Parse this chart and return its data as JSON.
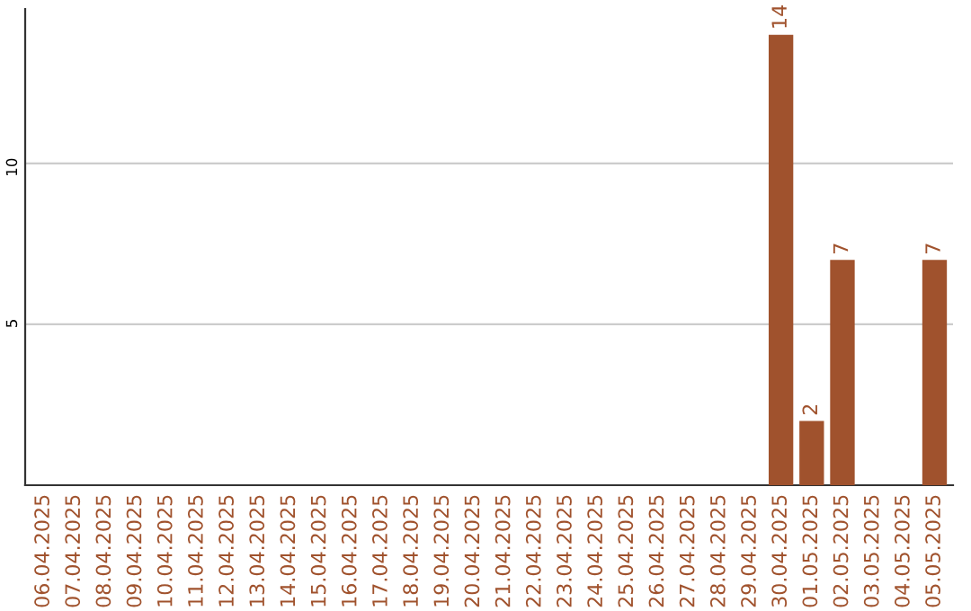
{
  "chart_data": {
    "type": "bar",
    "categories": [
      "06.04.2025",
      "07.04.2025",
      "08.04.2025",
      "09.04.2025",
      "10.04.2025",
      "11.04.2025",
      "12.04.2025",
      "13.04.2025",
      "14.04.2025",
      "15.04.2025",
      "16.04.2025",
      "17.04.2025",
      "18.04.2025",
      "19.04.2025",
      "20.04.2025",
      "21.04.2025",
      "22.04.2025",
      "23.04.2025",
      "24.04.2025",
      "25.04.2025",
      "26.04.2025",
      "27.04.2025",
      "28.04.2025",
      "29.04.2025",
      "30.04.2025",
      "01.05.2025",
      "02.05.2025",
      "03.05.2025",
      "04.05.2025",
      "05.05.2025"
    ],
    "values": [
      0,
      0,
      0,
      0,
      0,
      0,
      0,
      0,
      0,
      0,
      0,
      0,
      0,
      0,
      0,
      0,
      0,
      0,
      0,
      0,
      0,
      0,
      0,
      0,
      14,
      2,
      7,
      0,
      0,
      7
    ],
    "value_labels": [
      null,
      null,
      null,
      null,
      null,
      null,
      null,
      null,
      null,
      null,
      null,
      null,
      null,
      null,
      null,
      null,
      null,
      null,
      null,
      null,
      null,
      null,
      null,
      null,
      "14",
      "2",
      "7",
      null,
      null,
      "7"
    ],
    "color": "#a0522d",
    "ylim": [
      0,
      14.8
    ],
    "yticks": [
      5,
      10
    ],
    "grid": "y"
  }
}
